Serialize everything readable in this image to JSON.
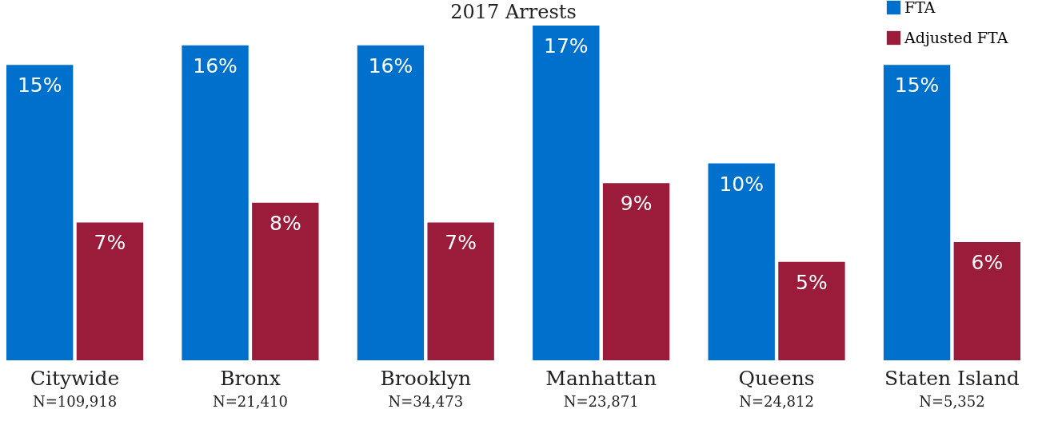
{
  "chart_data": {
    "type": "bar",
    "title": "2017 Arrests",
    "categories": [
      "Citywide",
      "Bronx",
      "Brooklyn",
      "Manhattan",
      "Queens",
      "Staten Island"
    ],
    "series": [
      {
        "name": "FTA",
        "color": "#0070cd",
        "values": [
          15,
          16,
          16,
          17,
          10,
          15
        ],
        "value_labels": [
          "15%",
          "16%",
          "16%",
          "17%",
          "10%",
          "15%"
        ]
      },
      {
        "name": "Adjusted FTA",
        "color": "#9b1b3a",
        "values": [
          7,
          8,
          7,
          9,
          5,
          6
        ],
        "value_labels": [
          "7%",
          "8%",
          "7%",
          "9%",
          "5%",
          "6%"
        ]
      }
    ],
    "legend": "top right",
    "annotations": [
      "N=109,918",
      "N=21,410",
      "N=34,473",
      "N=23,871",
      "N=24,812",
      "N=5,352"
    ]
  }
}
